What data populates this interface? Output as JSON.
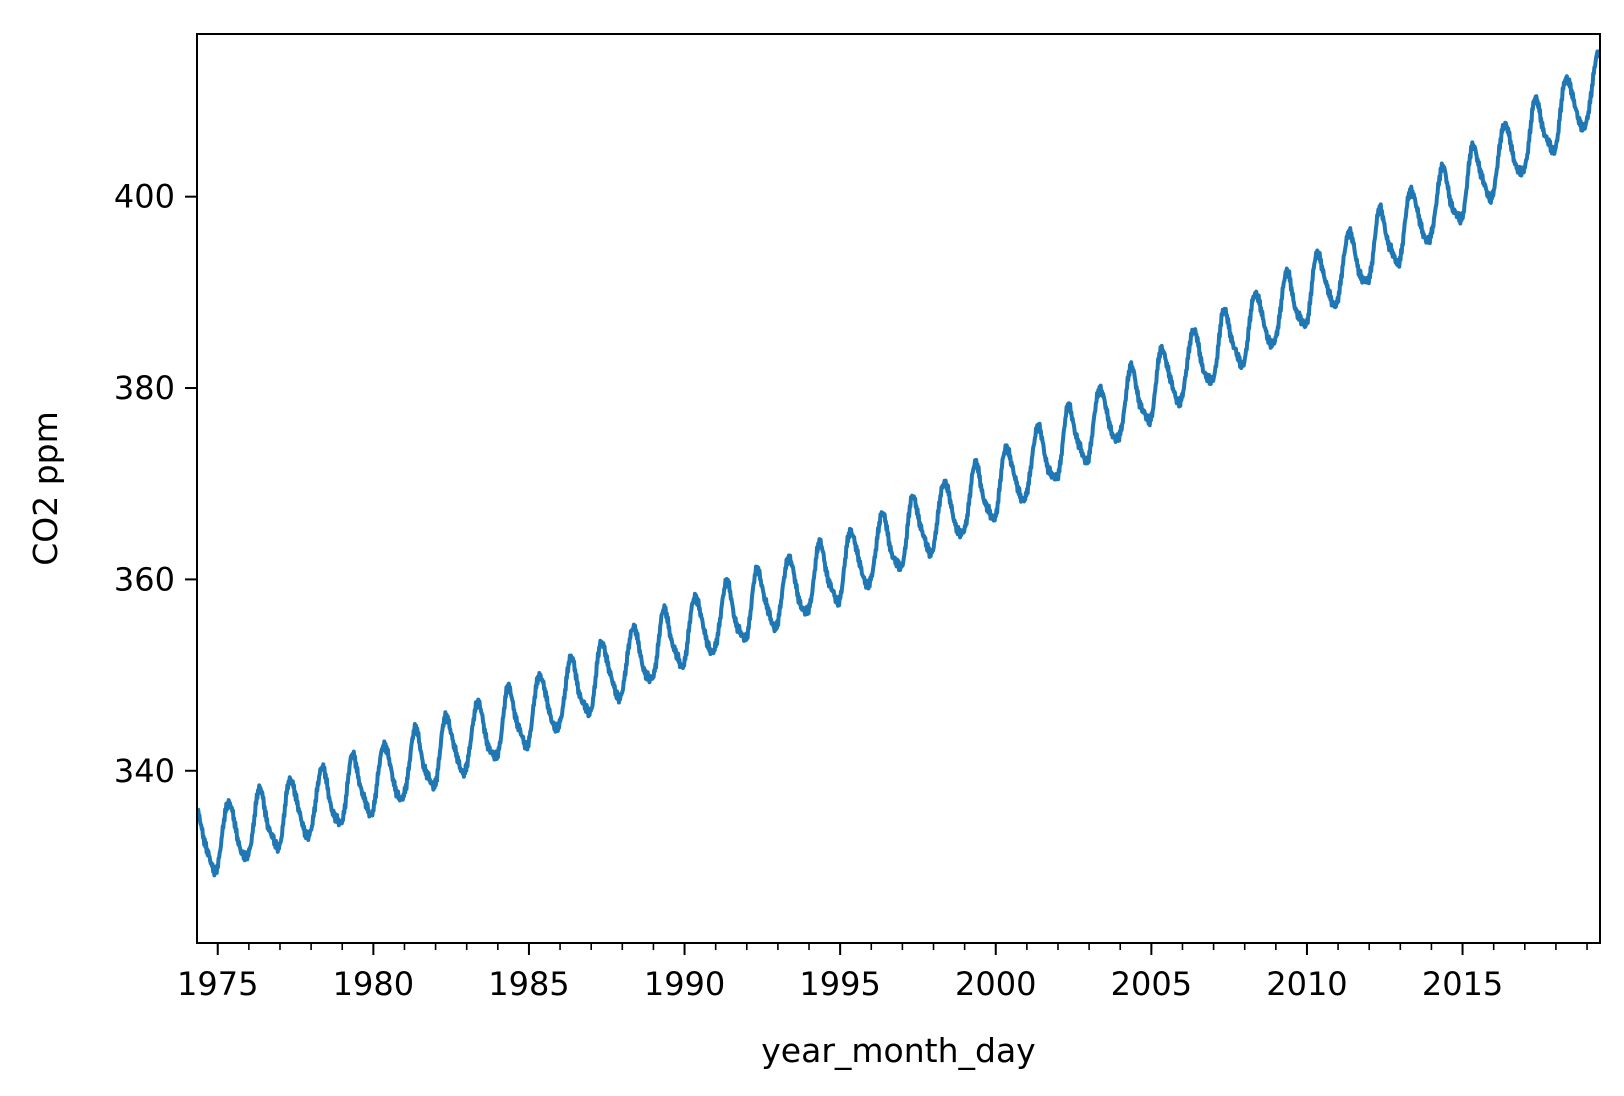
{
  "chart_data": {
    "type": "line",
    "title": "",
    "xlabel": "year_month_day",
    "ylabel": "CO2 ppm",
    "x_range": [
      "1974-05",
      "2019-06"
    ],
    "ylim": [
      322,
      417
    ],
    "x_ticks": [
      "1975",
      "1980",
      "1985",
      "1990",
      "1995",
      "2000",
      "2005",
      "2010",
      "2015"
    ],
    "y_ticks": [
      340,
      360,
      380,
      400
    ],
    "grid": false,
    "legend": "none",
    "series": [
      {
        "color": "#1f77b4",
        "resolution": "weekly",
        "trend_knots": [
          {
            "date": "1974-05",
            "ppm": 332.0
          },
          {
            "date": "1980-01",
            "ppm": 338.7
          },
          {
            "date": "1985-01",
            "ppm": 345.9
          },
          {
            "date": "1990-01",
            "ppm": 354.2
          },
          {
            "date": "1995-01",
            "ppm": 360.9
          },
          {
            "date": "2000-01",
            "ppm": 369.5
          },
          {
            "date": "2005-01",
            "ppm": 379.8
          },
          {
            "date": "2010-01",
            "ppm": 389.7
          },
          {
            "date": "2015-01",
            "ppm": 400.8
          },
          {
            "date": "2019-06",
            "ppm": 411.5
          }
        ],
        "seasonal_amplitude_ppm": 3.2,
        "seasonal_peak": "May",
        "seasonal_trough": "October"
      }
    ]
  }
}
